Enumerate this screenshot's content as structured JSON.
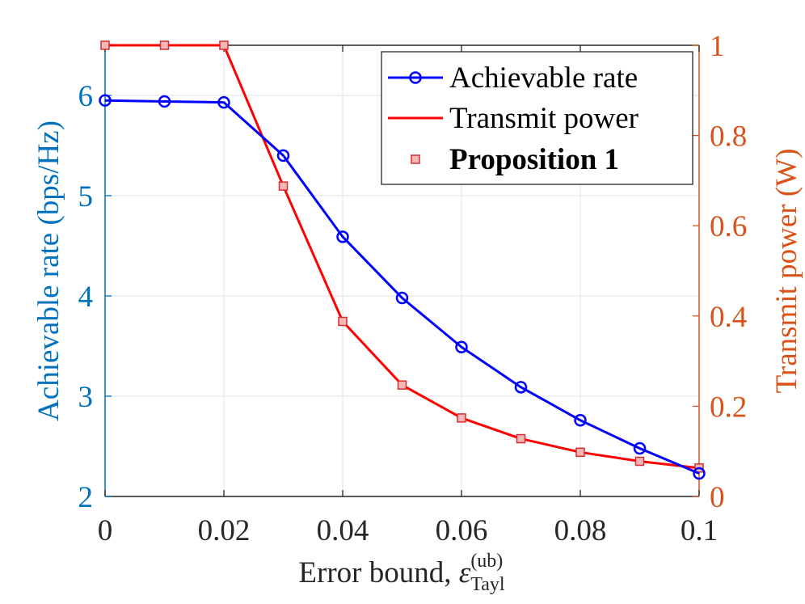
{
  "chart_data": {
    "type": "line",
    "x": [
      0,
      0.01,
      0.02,
      0.03,
      0.04,
      0.05,
      0.06,
      0.07,
      0.08,
      0.09,
      0.1
    ],
    "xlabel_main": "Error bound, ",
    "xlabel_symbol": "ε",
    "xlabel_superscript": "(ub)",
    "xlabel_subscript": "Tayl",
    "xlim": [
      0,
      0.1
    ],
    "xticks": [
      0,
      0.02,
      0.04,
      0.06,
      0.08,
      0.1
    ],
    "xtick_labels": [
      "0",
      "0.02",
      "0.04",
      "0.06",
      "0.08",
      "0.1"
    ],
    "left_axis": {
      "label": "Achievable rate (bps/Hz)",
      "ylim": [
        2,
        6.5
      ],
      "ticks": [
        2,
        3,
        4,
        5,
        6
      ],
      "tick_labels": [
        "2",
        "3",
        "4",
        "5",
        "6"
      ]
    },
    "right_axis": {
      "label": "Transmit power (W)",
      "ylim": [
        0,
        1
      ],
      "ticks": [
        0,
        0.2,
        0.4,
        0.6,
        0.8,
        1
      ],
      "tick_labels": [
        "0",
        "0.2",
        "0.4",
        "0.6",
        "0.8",
        "1"
      ]
    },
    "series": [
      {
        "name": "Achievable rate",
        "axis": "left",
        "marker": "circle",
        "values": [
          5.95,
          5.94,
          5.93,
          5.4,
          4.59,
          3.98,
          3.49,
          3.09,
          2.76,
          2.48,
          2.23
        ]
      },
      {
        "name": "Transmit power",
        "axis": "right",
        "marker": "none",
        "values": [
          1.0,
          1.0,
          1.0,
          0.688,
          0.388,
          0.247,
          0.174,
          0.128,
          0.098,
          0.078,
          0.063
        ]
      },
      {
        "name": "Proposition 1",
        "axis": "right",
        "marker": "square",
        "values": [
          1.0,
          1.0,
          1.0,
          0.688,
          0.388,
          0.247,
          0.174,
          0.128,
          0.098,
          0.078,
          0.063
        ]
      }
    ],
    "legend": {
      "placement": "top-right",
      "entries": [
        "Achievable rate",
        "Transmit power",
        "Proposition 1"
      ]
    },
    "grid": true
  },
  "colors": {
    "rate_line": "#0000ff",
    "power_line": "#ff0000",
    "square_fill": "#f4b6b6",
    "square_edge": "#d62d2d",
    "left_axis": "#0072bd",
    "right_axis": "#d95319",
    "grid": "#e3e8ef",
    "frame": "#262626"
  }
}
